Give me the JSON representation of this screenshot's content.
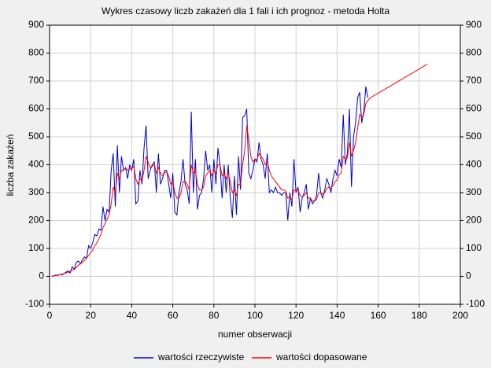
{
  "chart_data": {
    "type": "line",
    "title": "Wykres czasowy liczb zakażeń dla 1 fali i ich prognoz - metoda Holta",
    "x_label": "numer obserwacji",
    "y_label": "liczba zakażeń",
    "xlim": [
      0,
      200
    ],
    "xticks": [
      0,
      20,
      40,
      60,
      80,
      100,
      120,
      140,
      160,
      180,
      200
    ],
    "ylim": [
      -100,
      900
    ],
    "yticks": [
      -100,
      0,
      100,
      200,
      300,
      400,
      500,
      600,
      700,
      800,
      900
    ],
    "y2lim": [
      -100,
      900
    ],
    "y2ticks": [
      -100,
      0,
      100,
      200,
      300,
      400,
      500,
      600,
      700,
      800,
      900
    ],
    "grid": true,
    "legend": "bottom",
    "x": [
      1,
      2,
      3,
      4,
      5,
      6,
      7,
      8,
      9,
      10,
      11,
      12,
      13,
      14,
      15,
      16,
      17,
      18,
      19,
      20,
      21,
      22,
      23,
      24,
      25,
      26,
      27,
      28,
      29,
      30,
      31,
      32,
      33,
      34,
      35,
      36,
      37,
      38,
      39,
      40,
      41,
      42,
      43,
      44,
      45,
      46,
      47,
      48,
      49,
      50,
      51,
      52,
      53,
      54,
      55,
      56,
      57,
      58,
      59,
      60,
      61,
      62,
      63,
      64,
      65,
      66,
      67,
      68,
      69,
      70,
      71,
      72,
      73,
      74,
      75,
      76,
      77,
      78,
      79,
      80,
      81,
      82,
      83,
      84,
      85,
      86,
      87,
      88,
      89,
      90,
      91,
      92,
      93,
      94,
      95,
      96,
      97,
      98,
      99,
      100,
      101,
      102,
      103,
      104,
      105,
      106,
      107,
      108,
      109,
      110,
      111,
      112,
      113,
      114,
      115,
      116,
      117,
      118,
      119,
      120,
      121,
      122,
      123,
      124,
      125,
      126,
      127,
      128,
      129,
      130,
      131,
      132,
      133,
      134,
      135,
      136,
      137,
      138,
      139,
      140,
      141,
      142,
      143,
      144,
      145,
      146,
      147,
      148,
      149,
      150,
      151,
      152,
      153,
      154,
      155,
      156,
      157,
      158,
      159,
      160,
      161,
      162,
      163,
      164,
      165,
      166,
      167,
      168,
      169,
      170,
      171,
      172,
      173,
      174,
      175,
      176,
      177,
      178,
      179,
      180,
      181,
      182,
      183,
      184
    ],
    "series": [
      {
        "name": "wartości rzeczywiste",
        "color": "#0000cc",
        "values": [
          0,
          2,
          5,
          3,
          8,
          5,
          10,
          15,
          20,
          12,
          35,
          25,
          50,
          55,
          45,
          60,
          70,
          65,
          110,
          100,
          120,
          150,
          145,
          170,
          165,
          250,
          200,
          240,
          230,
          380,
          440,
          250,
          470,
          300,
          430,
          380,
          390,
          350,
          400,
          380,
          420,
          260,
          270,
          380,
          330,
          460,
          540,
          350,
          380,
          400,
          410,
          300,
          440,
          330,
          350,
          380,
          380,
          330,
          280,
          370,
          230,
          220,
          300,
          340,
          420,
          330,
          310,
          260,
          590,
          300,
          420,
          240,
          290,
          300,
          350,
          450,
          380,
          400,
          300,
          420,
          330,
          460,
          400,
          280,
          400,
          300,
          400,
          280,
          210,
          360,
          220,
          430,
          310,
          570,
          575,
          600,
          370,
          350,
          380,
          420,
          410,
          480,
          420,
          400,
          350,
          440,
          300,
          310,
          300,
          320,
          300,
          300,
          290,
          300,
          300,
          200,
          300,
          250,
          420,
          300,
          320,
          230,
          280,
          300,
          330,
          240,
          280,
          260,
          270,
          290,
          370,
          300,
          280,
          310,
          350,
          330,
          300,
          350,
          380,
          360,
          420,
          390,
          580,
          400,
          440,
          600,
          320,
          500,
          550,
          640,
          660,
          550,
          590,
          680,
          640,
          null,
          null,
          null,
          null,
          null,
          null,
          null,
          null,
          null,
          null,
          null,
          null,
          null,
          null,
          null,
          null,
          null,
          null,
          null,
          null,
          null,
          null,
          null,
          null,
          null,
          null,
          null,
          null,
          null
        ]
      },
      {
        "name": "wartości dopasowane",
        "color": "#ff0000",
        "values": [
          0,
          1,
          3,
          5,
          7,
          8,
          10,
          12,
          15,
          18,
          22,
          25,
          32,
          40,
          45,
          50,
          58,
          65,
          75,
          85,
          95,
          110,
          120,
          135,
          150,
          175,
          190,
          205,
          220,
          260,
          320,
          300,
          370,
          350,
          380,
          380,
          390,
          380,
          385,
          385,
          395,
          350,
          330,
          350,
          340,
          380,
          430,
          410,
          390,
          395,
          400,
          370,
          390,
          370,
          360,
          370,
          375,
          360,
          330,
          340,
          300,
          280,
          280,
          300,
          340,
          340,
          330,
          310,
          400,
          370,
          380,
          330,
          310,
          310,
          320,
          360,
          370,
          380,
          360,
          380,
          370,
          400,
          400,
          360,
          370,
          350,
          370,
          340,
          300,
          310,
          290,
          330,
          330,
          400,
          450,
          540,
          490,
          430,
          410,
          420,
          420,
          440,
          430,
          420,
          400,
          410,
          380,
          360,
          350,
          340,
          330,
          320,
          310,
          310,
          305,
          280,
          285,
          275,
          310,
          305,
          310,
          290,
          285,
          290,
          300,
          280,
          280,
          270,
          270,
          275,
          300,
          300,
          295,
          300,
          315,
          320,
          315,
          325,
          340,
          345,
          365,
          370,
          430,
          420,
          425,
          480,
          430,
          450,
          480,
          530,
          580,
          570,
          580,
          620,
          630,
          639,
          643,
          648,
          652,
          656,
          661,
          665,
          669,
          674,
          678,
          682,
          687,
          691,
          695,
          700,
          704,
          708,
          713,
          717,
          721,
          726,
          730,
          734,
          739,
          743,
          747,
          752,
          756,
          760
        ]
      }
    ]
  }
}
